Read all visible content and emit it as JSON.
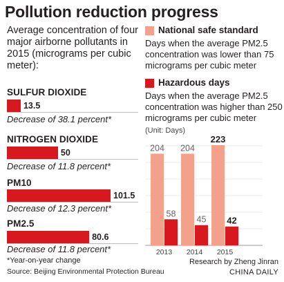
{
  "title": "Pollution reduction progress",
  "intro": "Average concentration of four major airborne pollutants in 2015 (micrograms per cubic meter):",
  "pollutants": [
    {
      "name": "SULFUR DIOXIDE",
      "value": 13.5,
      "value_label": "13.5",
      "change": "Decrease of 38.1 percent*"
    },
    {
      "name": "NITROGEN DIOXIDE",
      "value": 50,
      "value_label": "50",
      "change": "Decrease of 11.8 percent*"
    },
    {
      "name": "PM10",
      "value": 101.5,
      "value_label": "101.5",
      "change": "Decrease of 12.3 percent*"
    },
    {
      "name": "PM2.5",
      "value": 80.6,
      "value_label": "80.6",
      "change": "Decrease of 11.8 percent*"
    }
  ],
  "footnote": "*Year-on-year change",
  "source": "Source: Beijing Environmental Protection Bureau",
  "legend": [
    {
      "title": "National safe standard",
      "desc": "Days when the average PM2.5 concentration was lower than 75 micrograms per cubic meter",
      "color": "#f4a18b"
    },
    {
      "title": "Hazardous days",
      "desc": "Days when the average PM2.5 concentration was higher than 250 micrograms per cubic meter",
      "color": "#d7191f"
    }
  ],
  "unit_label": "(Unit: Days)",
  "credit": "Research by Zheng Jinran",
  "brand": "CHINA DAILY",
  "colors": {
    "safe": "#f4a18b",
    "hazard": "#d7191f",
    "bar": "#d7191f"
  },
  "chart_data": {
    "type": "bar",
    "categories": [
      "2013",
      "2014",
      "2015"
    ],
    "series": [
      {
        "name": "National safe standard",
        "values": [
          204,
          204,
          223
        ]
      },
      {
        "name": "Hazardous days",
        "values": [
          58,
          45,
          42
        ]
      }
    ],
    "ylim": [
      0,
      230
    ]
  }
}
